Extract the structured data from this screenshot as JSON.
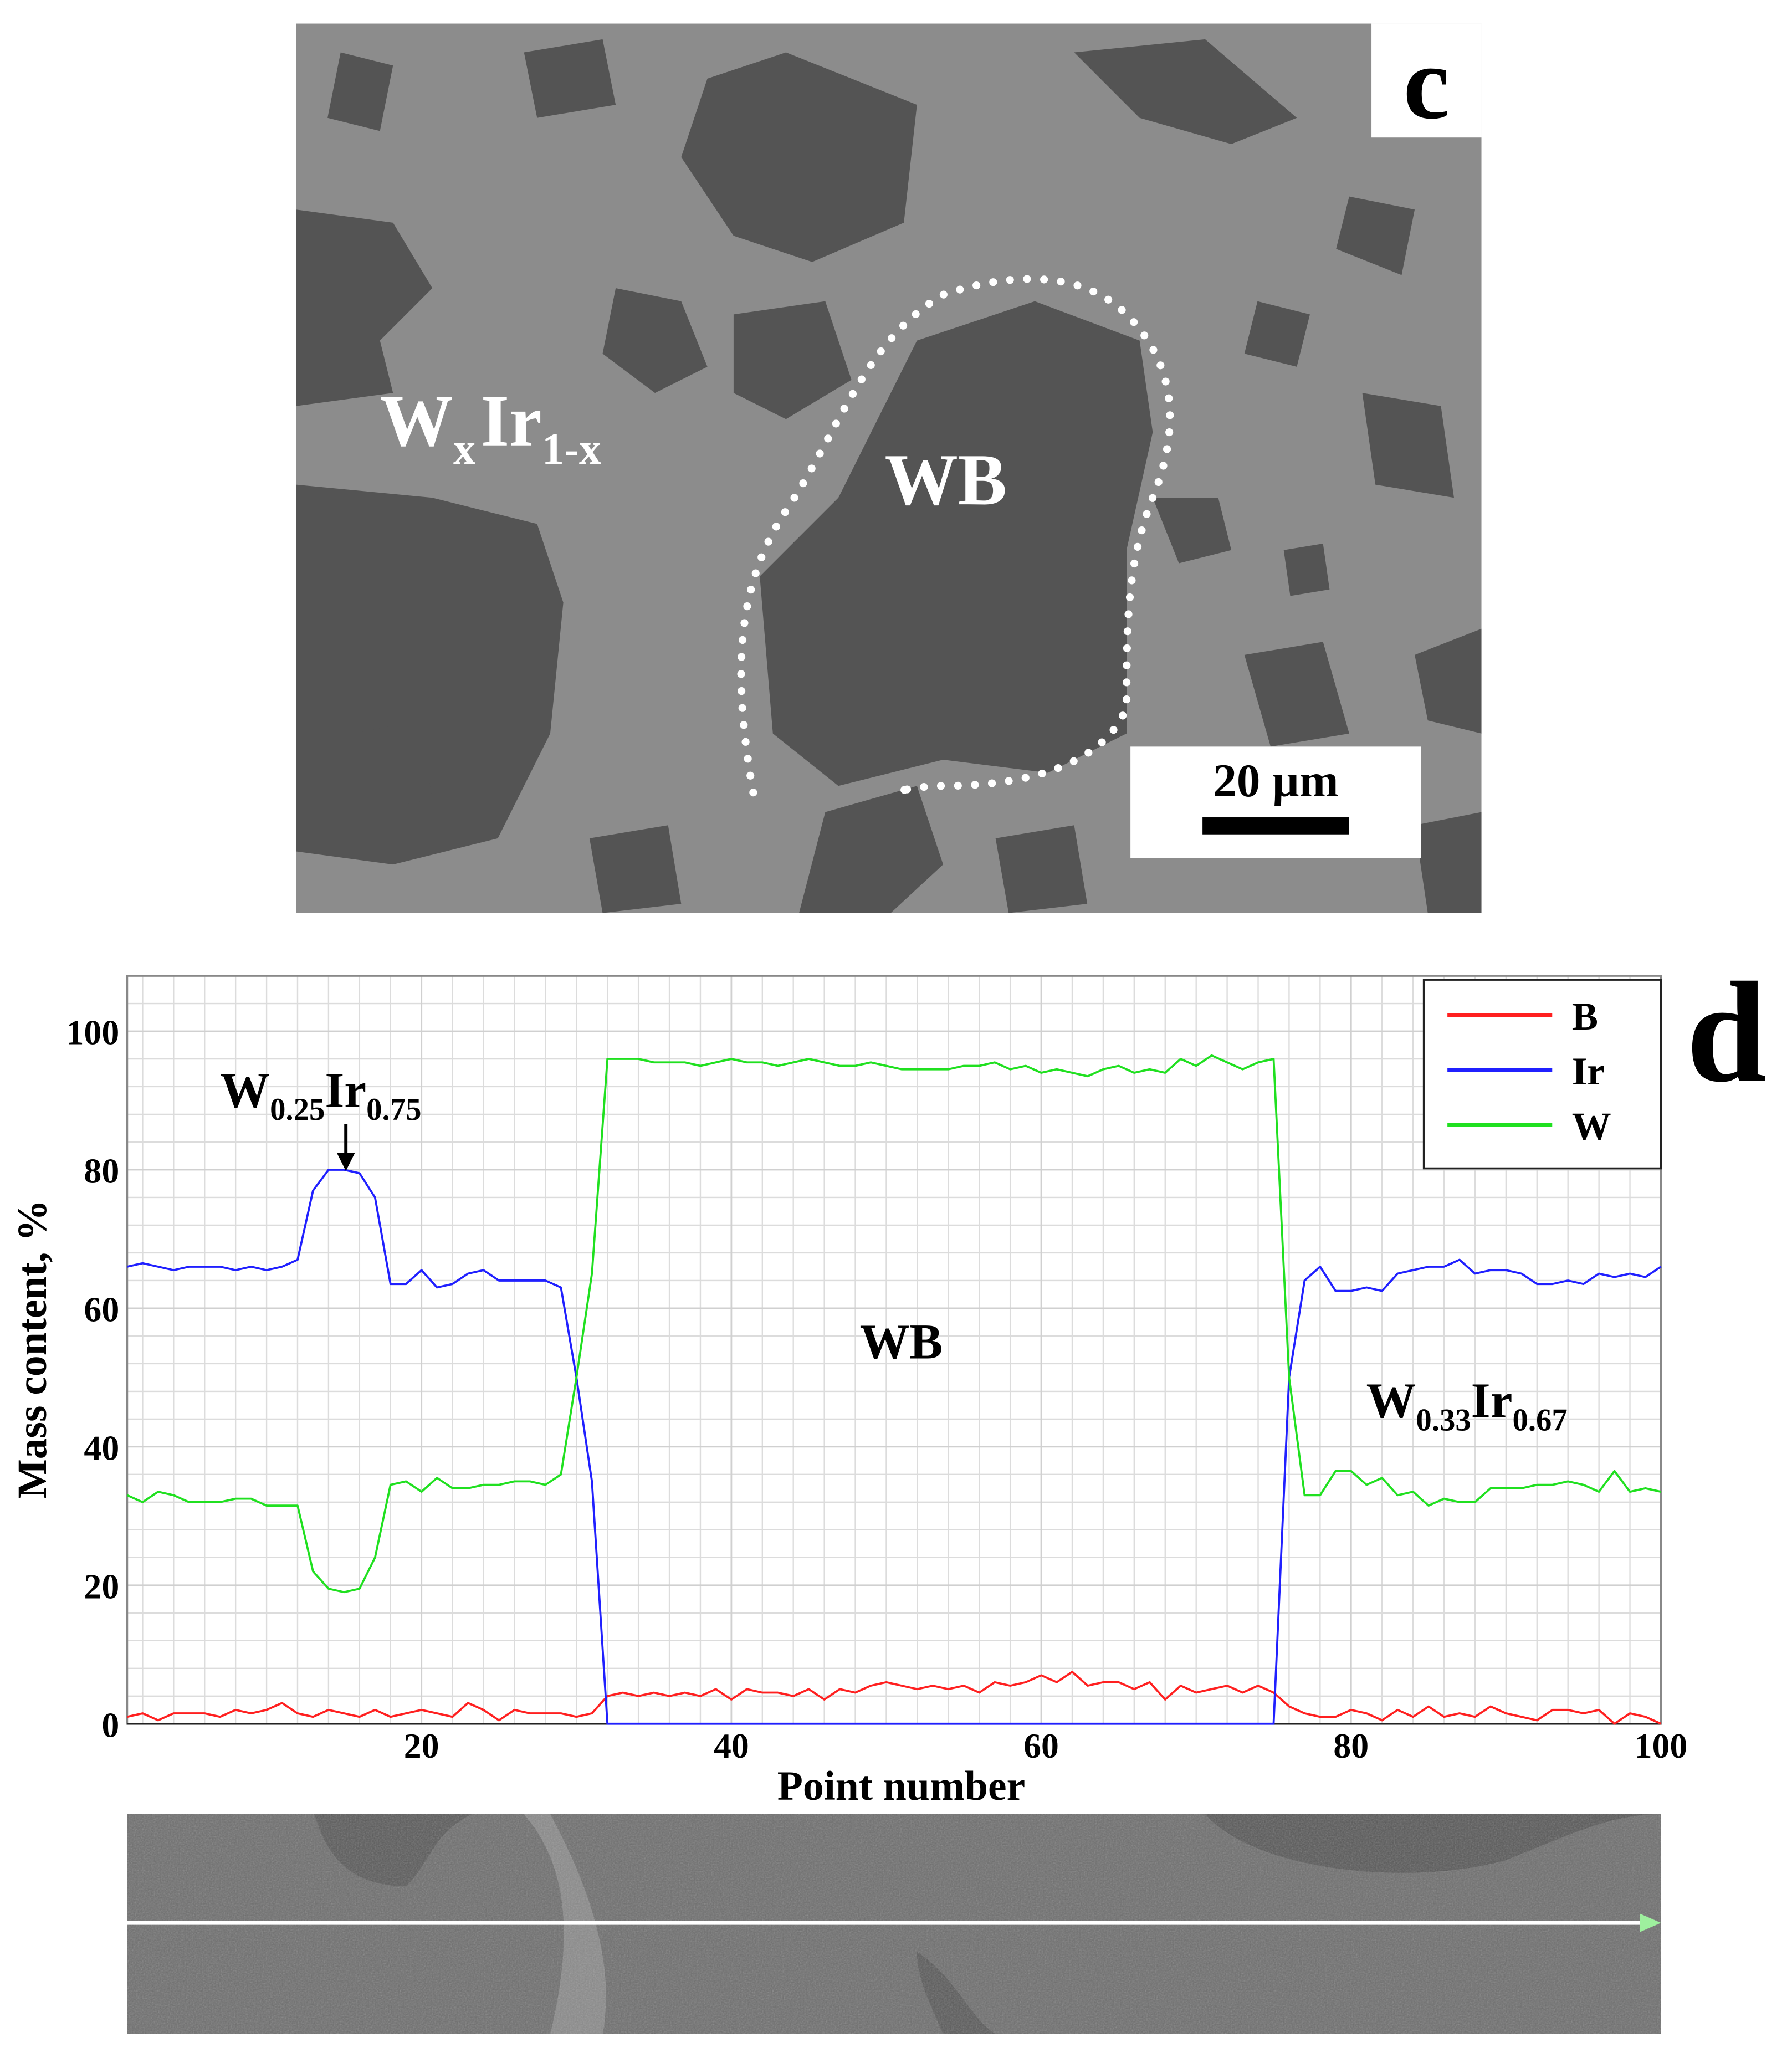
{
  "panel_c": {
    "label": "c",
    "phase_label": [
      "W",
      "x",
      "Ir",
      "1-x"
    ],
    "region_label": "WB",
    "scale_bar": "20 µm"
  },
  "chart_data": {
    "type": "line",
    "panel_label": "d",
    "x_label": "Point number",
    "y_label": "Mass content, %",
    "annotation_peak": [
      "W",
      "0.25",
      "Ir",
      "0.75"
    ],
    "annotation_middle": "WB",
    "annotation_right": [
      "W",
      "0.33",
      "Ir",
      "0.67"
    ],
    "xlim": [
      1,
      100
    ],
    "ylim": [
      0,
      108
    ],
    "xticks": [
      20,
      40,
      60,
      80,
      100
    ],
    "yticks": [
      0,
      20,
      40,
      60,
      80,
      100
    ],
    "xminorticks": [
      2,
      4,
      6,
      8,
      10,
      12,
      14,
      16,
      18,
      20,
      22,
      24,
      26,
      28,
      30,
      32,
      34,
      36,
      38,
      40,
      42,
      44,
      46,
      48,
      50,
      52,
      54,
      56,
      58,
      60,
      62,
      64,
      66,
      68,
      70,
      72,
      74,
      76,
      78,
      80,
      82,
      84,
      86,
      88,
      90,
      92,
      94,
      96,
      98,
      100
    ],
    "yminorticks": [
      0,
      4,
      8,
      12,
      16,
      20,
      24,
      28,
      32,
      36,
      40,
      44,
      48,
      52,
      56,
      60,
      64,
      68,
      72,
      76,
      80,
      84,
      88,
      92,
      96,
      100,
      104,
      108
    ],
    "grid": true,
    "legend": "upper right",
    "x": [
      1,
      2,
      3,
      4,
      5,
      6,
      7,
      8,
      9,
      10,
      11,
      12,
      13,
      14,
      15,
      16,
      17,
      18,
      19,
      20,
      21,
      22,
      23,
      24,
      25,
      26,
      27,
      28,
      29,
      30,
      31,
      32,
      33,
      34,
      35,
      36,
      37,
      38,
      39,
      40,
      41,
      42,
      43,
      44,
      45,
      46,
      47,
      48,
      49,
      50,
      51,
      52,
      53,
      54,
      55,
      56,
      57,
      58,
      59,
      60,
      61,
      62,
      63,
      64,
      65,
      66,
      67,
      68,
      69,
      70,
      71,
      72,
      73,
      74,
      75,
      76,
      77,
      78,
      79,
      80,
      81,
      82,
      83,
      84,
      85,
      86,
      87,
      88,
      89,
      90,
      91,
      92,
      93,
      94,
      95,
      96,
      97,
      98,
      99,
      100
    ],
    "series": [
      {
        "name": "B",
        "color": "#ff2020",
        "values": [
          1,
          1.5,
          0.5,
          1.5,
          1.5,
          1.5,
          1,
          2,
          1.5,
          2,
          3,
          1.5,
          1,
          2,
          1.5,
          1,
          2,
          1,
          1.5,
          2,
          1.5,
          1,
          3,
          2,
          0.5,
          2,
          1.5,
          1.5,
          1.5,
          1,
          1.5,
          4,
          4.5,
          4,
          4.5,
          4,
          4.5,
          4,
          5,
          3.5,
          5,
          4.5,
          4.5,
          4,
          5,
          3.5,
          5,
          4.5,
          5.5,
          6,
          5.5,
          5,
          5.5,
          5,
          5.5,
          4.5,
          6,
          5.5,
          6,
          7,
          6,
          7.5,
          5.5,
          6,
          6,
          5,
          6,
          3.5,
          5.5,
          4.5,
          5,
          5.5,
          4.5,
          5.5,
          4.5,
          2.5,
          1.5,
          1,
          1,
          2,
          1.5,
          0.5,
          2,
          1,
          2.5,
          1,
          1.5,
          1,
          2.5,
          1.5,
          1,
          0.5,
          2,
          2,
          1.5,
          2,
          0,
          1.5,
          1,
          0
        ]
      },
      {
        "name": "Ir",
        "color": "#2020ff",
        "values": [
          66,
          66.5,
          66,
          65.5,
          66,
          66,
          66,
          65.5,
          66,
          65.5,
          66,
          67,
          77,
          80,
          80,
          79.5,
          76,
          63.5,
          63.5,
          65.5,
          63,
          63.5,
          65,
          65.5,
          64,
          64,
          64,
          64,
          63,
          50,
          35,
          0,
          0,
          0,
          0,
          0,
          0,
          0,
          0,
          0,
          0,
          0,
          0,
          0,
          0,
          0,
          0,
          0,
          0,
          0,
          0,
          0,
          0,
          0,
          0,
          0,
          0,
          0,
          0,
          0,
          0,
          0,
          0,
          0,
          0,
          0,
          0,
          0,
          0,
          0,
          0,
          0,
          0,
          0,
          0,
          50,
          64,
          66,
          62.5,
          62.5,
          63,
          62.5,
          65,
          65.5,
          66,
          66,
          67,
          65,
          65.5,
          65.5,
          65,
          63.5,
          63.5,
          64,
          63.5,
          65,
          64.5,
          65,
          64.5,
          66
        ]
      },
      {
        "name": "W",
        "color": "#20e020",
        "values": [
          33,
          32,
          33.5,
          33,
          32,
          32,
          32,
          32.5,
          32.5,
          31.5,
          31.5,
          31.5,
          22,
          19.5,
          19,
          19.5,
          24,
          34.5,
          35,
          33.5,
          35.5,
          34,
          34,
          34.5,
          34.5,
          35,
          35,
          34.5,
          36,
          50,
          65,
          96,
          96,
          96,
          95.5,
          95.5,
          95.5,
          95,
          95.5,
          96,
          95.5,
          95.5,
          95,
          95.5,
          96,
          95.5,
          95,
          95,
          95.5,
          95,
          94.5,
          94.5,
          94.5,
          94.5,
          95,
          95,
          95.5,
          94.5,
          95,
          94,
          94.5,
          94,
          93.5,
          94.5,
          95,
          94,
          94.5,
          94,
          96,
          95,
          96.5,
          95.5,
          94.5,
          95.5,
          96,
          50,
          33,
          33,
          36.5,
          36.5,
          34.5,
          35.5,
          33,
          33.5,
          31.5,
          32.5,
          32,
          32,
          34,
          34,
          34,
          34.5,
          34.5,
          35,
          34.5,
          33.5,
          36.5,
          33.5,
          34,
          33.5
        ]
      }
    ]
  }
}
